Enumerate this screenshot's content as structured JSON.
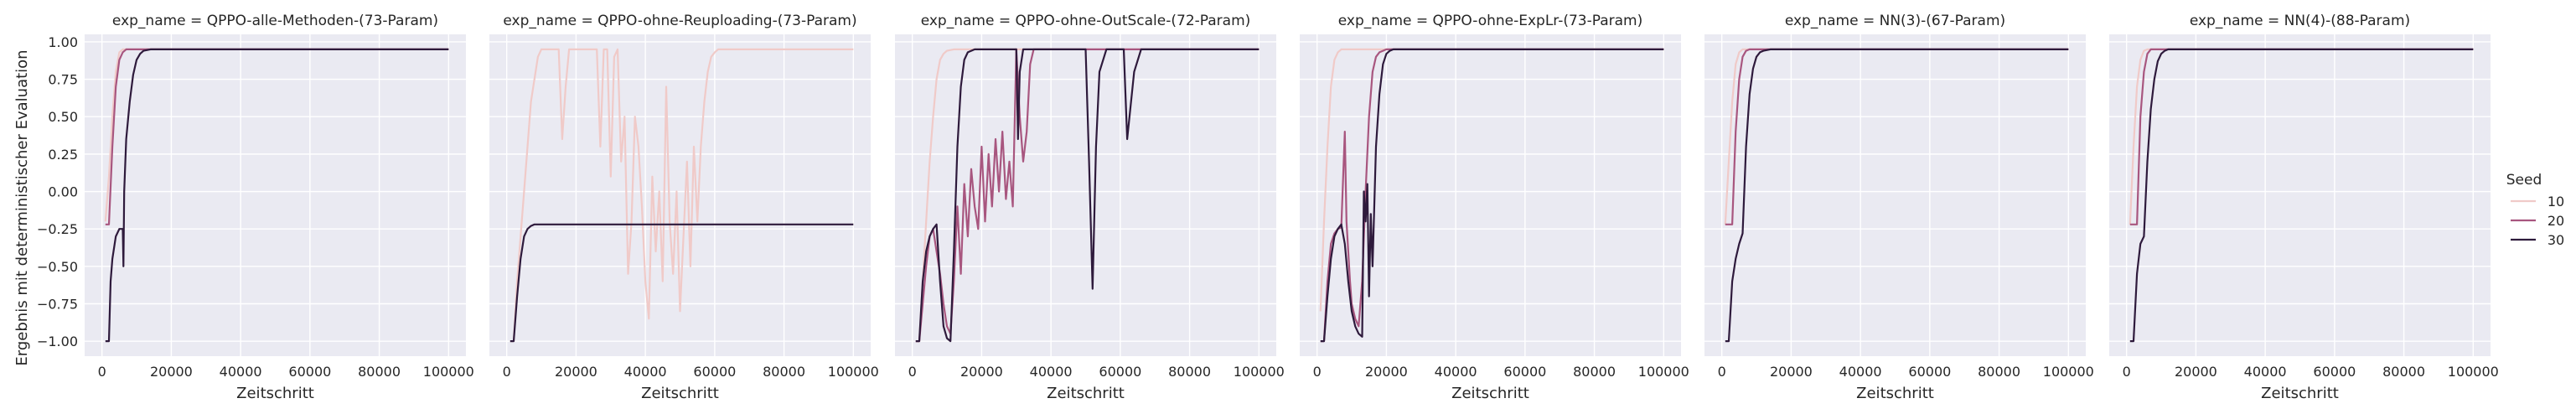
{
  "chart_data": {
    "type": "line",
    "ylabel": "Ergebnis mit deterministischer Evaluation",
    "xlabel": "Zeitschritt",
    "xlim": [
      -5000,
      105000
    ],
    "ylim": [
      -1.1,
      1.05
    ],
    "x_ticks": [
      0,
      20000,
      40000,
      60000,
      80000,
      100000
    ],
    "x_tick_labels": [
      "0",
      "20000",
      "40000",
      "60000",
      "80000",
      "100000"
    ],
    "y_ticks": [
      -1.0,
      -0.75,
      -0.5,
      -0.25,
      0.0,
      0.25,
      0.5,
      0.75,
      1.0
    ],
    "y_tick_labels": [
      "−1.00",
      "−0.75",
      "−0.50",
      "−0.25",
      "0.00",
      "0.25",
      "0.50",
      "0.75",
      "1.00"
    ],
    "grid": true,
    "legend": {
      "title": "Seed",
      "placement": "right",
      "entries": [
        {
          "label": "10",
          "color": "#f0cac8"
        },
        {
          "label": "20",
          "color": "#a8567f"
        },
        {
          "label": "30",
          "color": "#2e1a3c"
        }
      ]
    },
    "panels": [
      {
        "title": "exp_name = QPPO-alle-Methoden-(73-Param)",
        "series": [
          {
            "seed": "10",
            "x": [
              1000,
              2000,
              3000,
              4000,
              5000,
              6000,
              8000,
              100000
            ],
            "y": [
              -0.2,
              0.1,
              0.5,
              0.8,
              0.93,
              0.95,
              0.95,
              0.95
            ]
          },
          {
            "seed": "20",
            "x": [
              1000,
              2000,
              3000,
              4000,
              5000,
              6000,
              7000,
              8000,
              10000,
              100000
            ],
            "y": [
              -0.22,
              -0.22,
              0.3,
              0.7,
              0.88,
              0.93,
              0.95,
              0.95,
              0.95,
              0.95
            ]
          },
          {
            "seed": "30",
            "x": [
              1000,
              2000,
              2500,
              3000,
              4000,
              5000,
              6000,
              6200,
              6400,
              7000,
              8000,
              9000,
              10000,
              11000,
              12000,
              14000,
              100000
            ],
            "y": [
              -1.0,
              -1.0,
              -0.6,
              -0.45,
              -0.3,
              -0.25,
              -0.25,
              -0.5,
              0.0,
              0.35,
              0.6,
              0.78,
              0.88,
              0.92,
              0.94,
              0.95,
              0.95
            ]
          }
        ]
      },
      {
        "title": "exp_name = QPPO-ohne-Reuploading-(73-Param)",
        "series": [
          {
            "seed": "10",
            "x": [
              1000,
              2000,
              3000,
              5000,
              7000,
              9000,
              10000,
              12000,
              15000,
              16000,
              17000,
              18000,
              20000,
              22000,
              24000,
              26000,
              27000,
              28000,
              29000,
              30000,
              31000,
              32000,
              33000,
              34000,
              35000,
              36000,
              37000,
              38000,
              39000,
              40000,
              41000,
              42000,
              43000,
              44000,
              45000,
              46000,
              47000,
              48000,
              49000,
              50000,
              51000,
              52000,
              53000,
              54000,
              55000,
              56000,
              57000,
              58000,
              59000,
              60000,
              61000,
              62000,
              63000,
              64000,
              66000,
              70000,
              75000,
              100000
            ],
            "y": [
              -1.0,
              -1.0,
              -0.6,
              0.0,
              0.6,
              0.9,
              0.95,
              0.95,
              0.95,
              0.35,
              0.7,
              0.95,
              0.95,
              0.95,
              0.95,
              0.95,
              0.3,
              0.95,
              0.95,
              0.1,
              0.9,
              0.95,
              0.2,
              0.5,
              -0.55,
              -0.2,
              0.5,
              0.3,
              -0.1,
              -0.6,
              -0.85,
              0.1,
              -0.4,
              0.0,
              -0.6,
              0.7,
              -0.2,
              -0.55,
              0.0,
              -0.8,
              -0.3,
              0.2,
              -0.5,
              0.3,
              -0.2,
              0.3,
              0.6,
              0.8,
              0.9,
              0.93,
              0.95,
              0.95,
              0.95,
              0.95,
              0.95,
              0.95,
              0.95,
              0.95
            ]
          },
          {
            "seed": "30",
            "x": [
              1000,
              2000,
              3000,
              4000,
              5000,
              6000,
              7000,
              8000,
              10000,
              12000,
              100000
            ],
            "y": [
              -1.0,
              -1.0,
              -0.7,
              -0.45,
              -0.3,
              -0.25,
              -0.23,
              -0.22,
              -0.22,
              -0.22,
              -0.22
            ]
          }
        ]
      },
      {
        "title": "exp_name = QPPO-ohne-OutScale-(72-Param)",
        "series": [
          {
            "seed": "10",
            "x": [
              1000,
              2000,
              3000,
              4000,
              5000,
              6000,
              7000,
              8000,
              9000,
              10000,
              12000,
              15000,
              100000
            ],
            "y": [
              -1.0,
              -1.0,
              -0.6,
              -0.2,
              0.2,
              0.5,
              0.75,
              0.88,
              0.92,
              0.94,
              0.95,
              0.95,
              0.95
            ]
          },
          {
            "seed": "20",
            "x": [
              1000,
              2000,
              3000,
              4000,
              5000,
              6000,
              7000,
              8000,
              9000,
              10000,
              11000,
              12000,
              13000,
              14000,
              15000,
              16000,
              17000,
              18000,
              19000,
              20000,
              21000,
              22000,
              23000,
              24000,
              25000,
              26000,
              27000,
              28000,
              29000,
              30000,
              31000,
              32000,
              33000,
              34000,
              35000,
              36000,
              37000,
              38000,
              40000,
              100000
            ],
            "y": [
              -1.0,
              -1.0,
              -0.75,
              -0.5,
              -0.3,
              -0.25,
              -0.4,
              -0.55,
              -0.75,
              -0.9,
              -0.95,
              -0.6,
              -0.1,
              -0.55,
              0.05,
              -0.3,
              0.15,
              -0.1,
              -0.25,
              0.3,
              -0.2,
              0.25,
              -0.1,
              0.35,
              0.0,
              0.4,
              -0.05,
              0.2,
              -0.1,
              0.95,
              0.5,
              0.2,
              0.4,
              0.85,
              0.95,
              0.95,
              0.95,
              0.95,
              0.95,
              0.95
            ]
          },
          {
            "seed": "30",
            "x": [
              1000,
              2000,
              3000,
              4000,
              5000,
              6000,
              7000,
              8000,
              9000,
              10000,
              11000,
              12000,
              13000,
              14000,
              15000,
              16000,
              17000,
              18000,
              19000,
              20000,
              21000,
              22000,
              25000,
              28000,
              30000,
              30500,
              31000,
              32000,
              33000,
              34000,
              35000,
              40000,
              45000,
              48000,
              50000,
              51000,
              52000,
              53000,
              54000,
              56000,
              58000,
              59000,
              60000,
              61000,
              62000,
              64000,
              66000,
              70000,
              100000
            ],
            "y": [
              -1.0,
              -1.0,
              -0.6,
              -0.4,
              -0.3,
              -0.25,
              -0.22,
              -0.6,
              -0.9,
              -0.98,
              -1.0,
              -0.4,
              0.3,
              0.7,
              0.88,
              0.93,
              0.94,
              0.95,
              0.95,
              0.95,
              0.95,
              0.95,
              0.95,
              0.95,
              0.95,
              0.35,
              0.8,
              0.95,
              0.95,
              0.95,
              0.95,
              0.95,
              0.95,
              0.95,
              0.95,
              0.2,
              -0.65,
              0.3,
              0.8,
              0.95,
              0.95,
              0.95,
              0.95,
              0.95,
              0.35,
              0.8,
              0.95,
              0.95,
              0.95
            ]
          }
        ]
      },
      {
        "title": "exp_name = QPPO-ohne-ExpLr-(73-Param)",
        "series": [
          {
            "seed": "10",
            "x": [
              1000,
              2000,
              3000,
              4000,
              5000,
              6000,
              7000,
              8000,
              10000,
              100000
            ],
            "y": [
              -0.8,
              -0.2,
              0.3,
              0.7,
              0.88,
              0.93,
              0.95,
              0.95,
              0.95,
              0.95
            ]
          },
          {
            "seed": "20",
            "x": [
              1000,
              2000,
              3000,
              4000,
              5000,
              6000,
              7000,
              8000,
              8500,
              9000,
              9500,
              10000,
              11000,
              12000,
              13000,
              14000,
              15000,
              16000,
              17000,
              18000,
              19000,
              20000,
              22000,
              100000
            ],
            "y": [
              -1.0,
              -1.0,
              -0.6,
              -0.35,
              -0.28,
              -0.25,
              -0.24,
              0.4,
              -0.2,
              -0.4,
              -0.6,
              -0.75,
              -0.85,
              -0.9,
              -0.6,
              0.0,
              0.5,
              0.8,
              0.9,
              0.93,
              0.94,
              0.95,
              0.95,
              0.95
            ]
          },
          {
            "seed": "30",
            "x": [
              1000,
              2000,
              3000,
              4000,
              5000,
              6000,
              7000,
              8000,
              9000,
              10000,
              11000,
              12000,
              13000,
              13500,
              14000,
              14500,
              15000,
              15500,
              16000,
              17000,
              18000,
              19000,
              20000,
              21000,
              22000,
              24000,
              100000
            ],
            "y": [
              -1.0,
              -1.0,
              -0.7,
              -0.45,
              -0.3,
              -0.25,
              -0.22,
              -0.35,
              -0.6,
              -0.8,
              -0.9,
              -0.95,
              -0.97,
              0.0,
              -0.2,
              0.05,
              -0.7,
              -0.15,
              -0.5,
              0.3,
              0.65,
              0.85,
              0.92,
              0.94,
              0.95,
              0.95,
              0.95
            ]
          }
        ]
      },
      {
        "title": "exp_name = NN(3)-(67-Param)",
        "series": [
          {
            "seed": "10",
            "x": [
              1000,
              2000,
              3000,
              4000,
              5000,
              6000,
              8000,
              100000
            ],
            "y": [
              -0.22,
              0.2,
              0.6,
              0.85,
              0.93,
              0.95,
              0.95,
              0.95
            ]
          },
          {
            "seed": "20",
            "x": [
              1000,
              2000,
              3000,
              4000,
              5000,
              6000,
              7000,
              8000,
              10000,
              100000
            ],
            "y": [
              -0.22,
              -0.22,
              -0.22,
              0.4,
              0.75,
              0.9,
              0.94,
              0.95,
              0.95,
              0.95
            ]
          },
          {
            "seed": "30",
            "x": [
              1000,
              2000,
              3000,
              4000,
              5000,
              6000,
              7000,
              8000,
              9000,
              10000,
              11000,
              12000,
              14000,
              100000
            ],
            "y": [
              -1.0,
              -1.0,
              -0.6,
              -0.45,
              -0.35,
              -0.28,
              0.3,
              0.65,
              0.82,
              0.9,
              0.93,
              0.94,
              0.95,
              0.95
            ]
          }
        ]
      },
      {
        "title": "exp_name = NN(4)-(88-Param)",
        "series": [
          {
            "seed": "10",
            "x": [
              1000,
              2000,
              3000,
              4000,
              5000,
              6000,
              8000,
              100000
            ],
            "y": [
              -0.22,
              0.3,
              0.7,
              0.88,
              0.94,
              0.95,
              0.95,
              0.95
            ]
          },
          {
            "seed": "20",
            "x": [
              1000,
              2000,
              3000,
              4000,
              5000,
              6000,
              7000,
              8000,
              10000,
              100000
            ],
            "y": [
              -0.22,
              -0.22,
              -0.22,
              0.5,
              0.8,
              0.92,
              0.95,
              0.95,
              0.95,
              0.95
            ]
          },
          {
            "seed": "30",
            "x": [
              1000,
              2000,
              3000,
              4000,
              5000,
              6000,
              7000,
              8000,
              9000,
              10000,
              11000,
              12000,
              14000,
              100000
            ],
            "y": [
              -1.0,
              -1.0,
              -0.55,
              -0.35,
              -0.3,
              0.2,
              0.55,
              0.75,
              0.87,
              0.92,
              0.94,
              0.95,
              0.95,
              0.95
            ]
          }
        ]
      }
    ]
  }
}
